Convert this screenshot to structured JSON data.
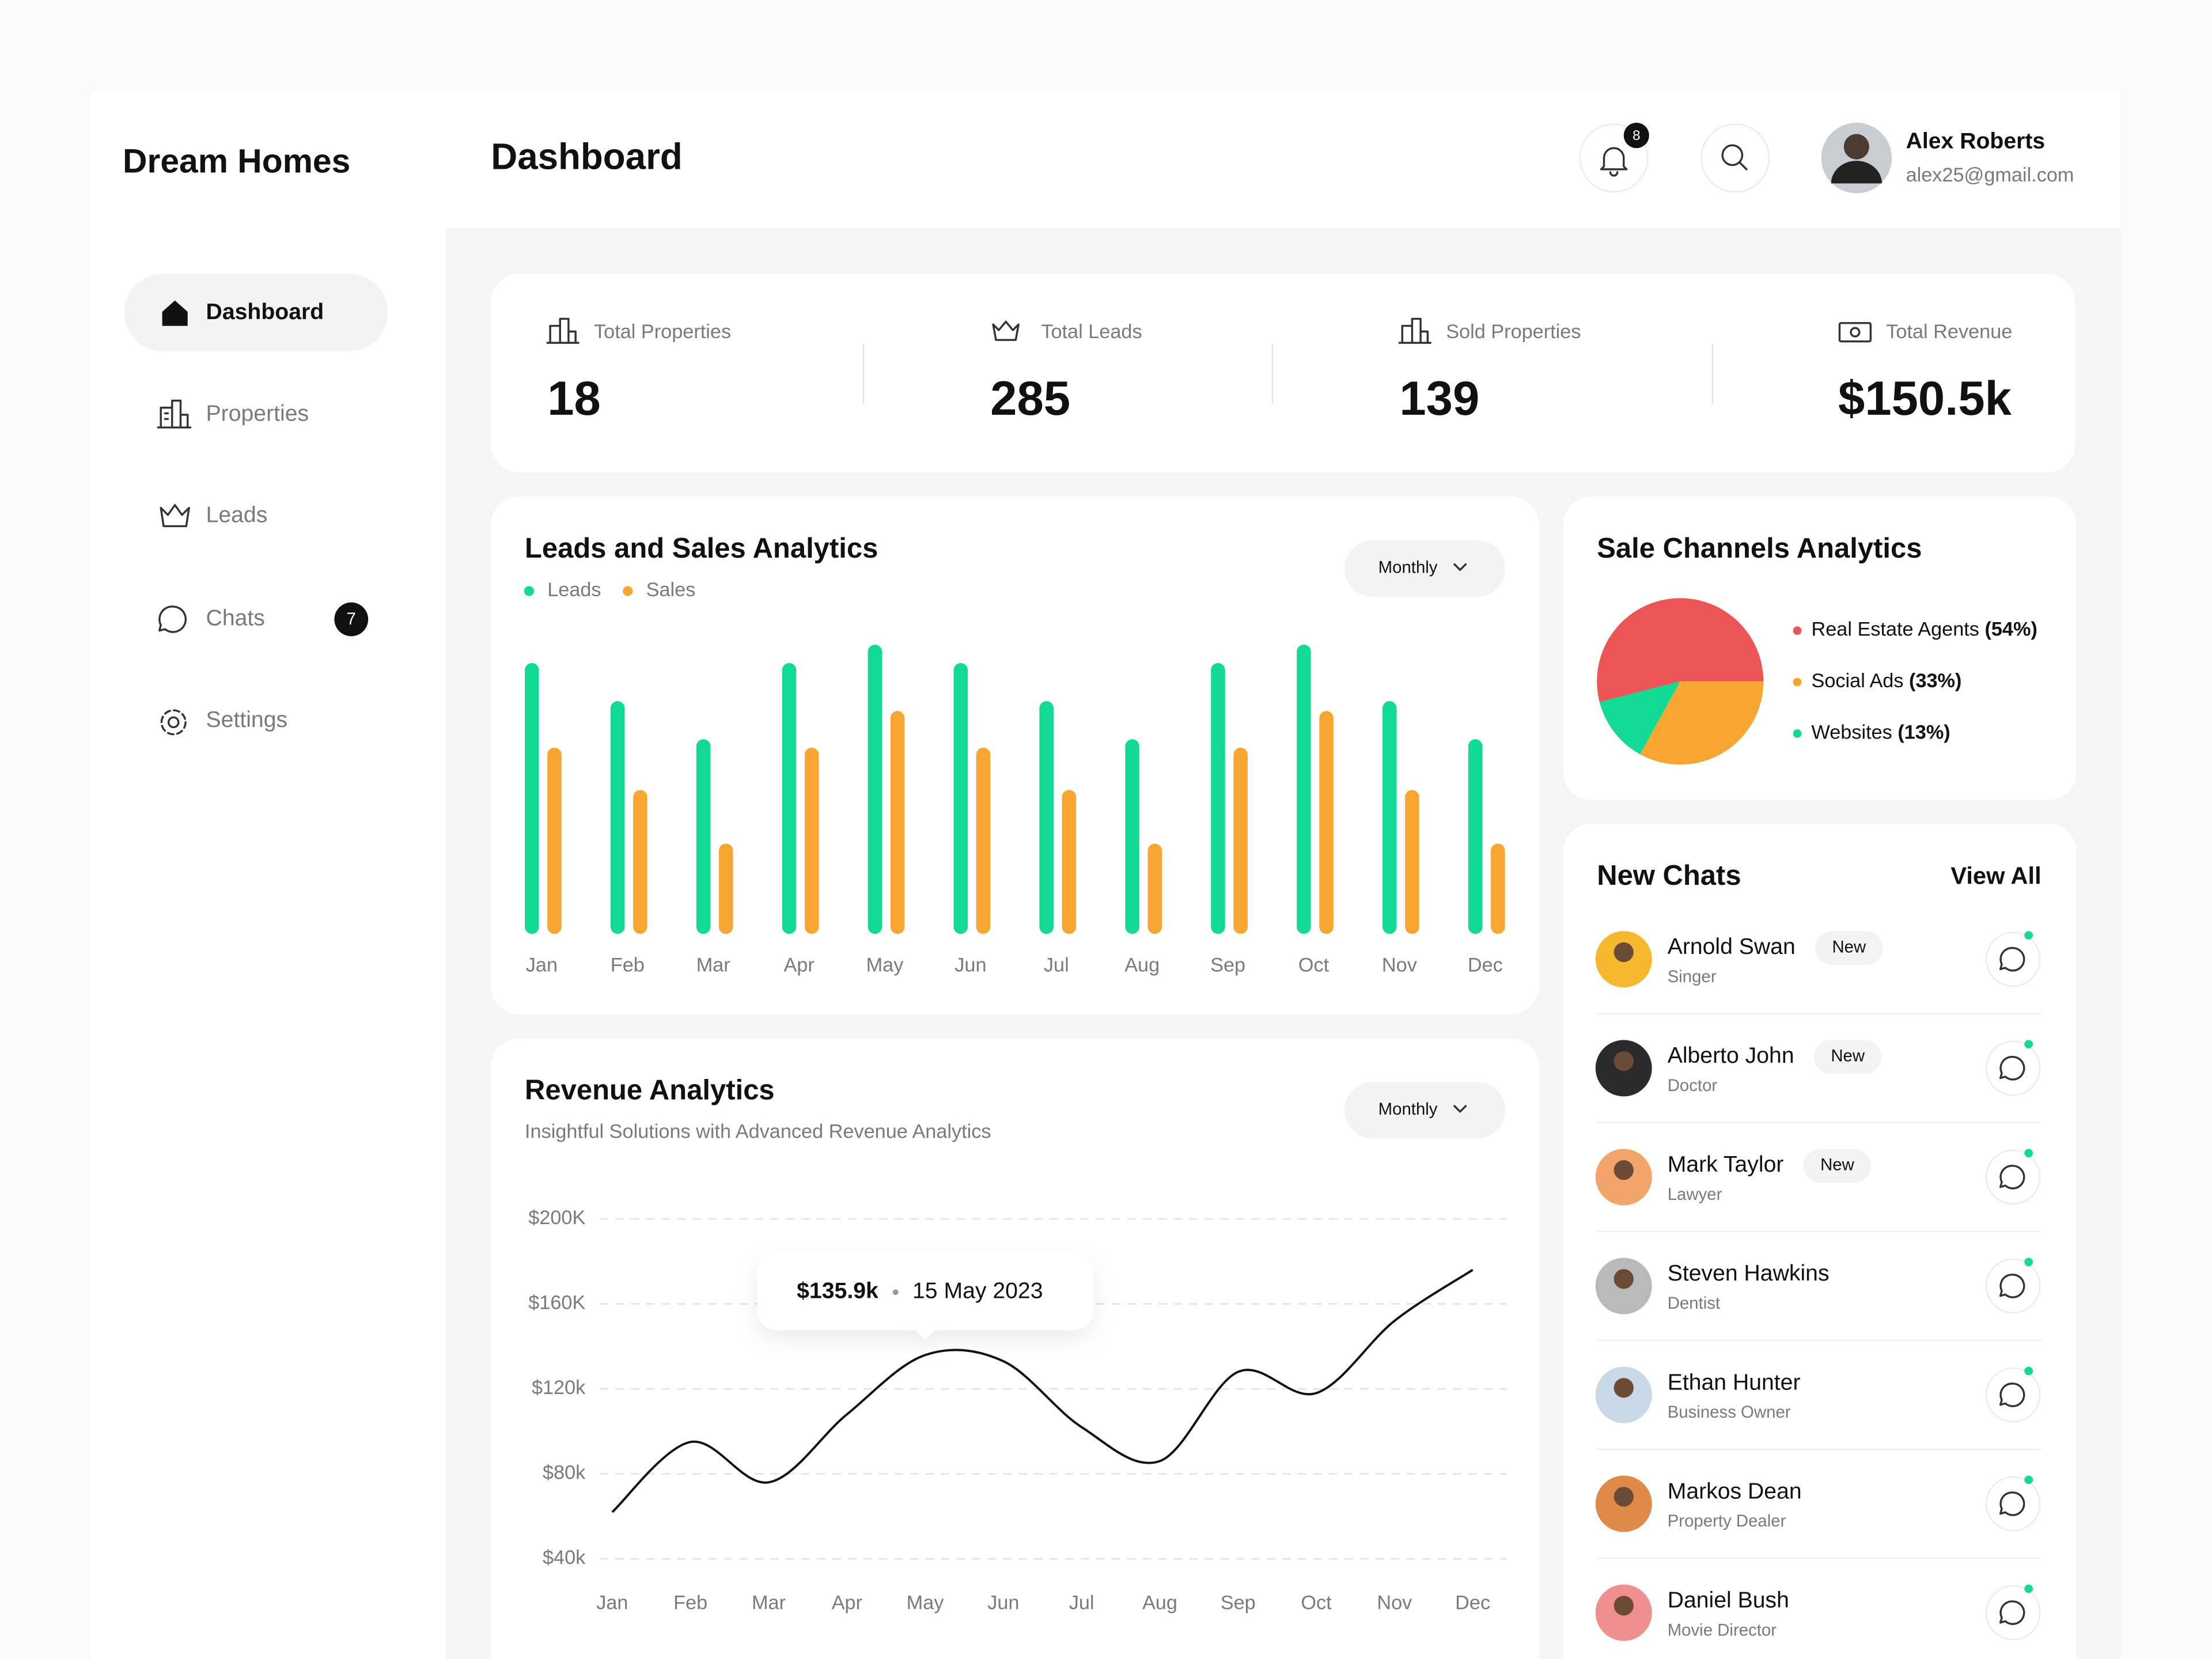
{
  "brand": "Dream Homes",
  "header": {
    "title": "Dashboard",
    "notifications": "8",
    "user": {
      "name": "Alex Roberts",
      "email": "alex25@gmail.com"
    }
  },
  "nav": [
    {
      "label": "Dashboard"
    },
    {
      "label": "Properties"
    },
    {
      "label": "Leads"
    },
    {
      "label": "Chats",
      "badge": "7"
    },
    {
      "label": "Settings"
    }
  ],
  "stats": [
    {
      "label": "Total Properties",
      "value": "18"
    },
    {
      "label": "Total Leads",
      "value": "285"
    },
    {
      "label": "Sold Properties",
      "value": "139"
    },
    {
      "label": "Total Revenue",
      "value": "$150.5k"
    }
  ],
  "leads_chart": {
    "type": "bar",
    "title": "Leads and Sales Analytics",
    "filter": "Monthly",
    "categories": [
      "Jan",
      "Feb",
      "Mar",
      "Apr",
      "May",
      "Jun",
      "Jul",
      "Aug",
      "Sep",
      "Oct",
      "Nov",
      "Dec"
    ],
    "series": [
      {
        "name": "Leads",
        "color": "#12d993",
        "values": [
          192,
          165,
          138,
          192,
          205,
          192,
          165,
          138,
          192,
          205,
          165,
          138
        ]
      },
      {
        "name": "Sales",
        "color": "#f9a532",
        "values": [
          132,
          102,
          64,
          132,
          158,
          132,
          102,
          64,
          132,
          158,
          102,
          64
        ]
      }
    ]
  },
  "channels_chart": {
    "type": "pie",
    "title": "Sale Channels Analytics",
    "categories": [
      "Real Estate Agents",
      "Social Ads",
      "Websites"
    ],
    "values": [
      54,
      33,
      13
    ],
    "value_labels": [
      "(54%)",
      "(33%)",
      "(13%)"
    ],
    "colors": [
      "#ec5555",
      "#f9a532",
      "#12d993"
    ]
  },
  "revenue_chart": {
    "type": "line",
    "title": "Revenue Analytics",
    "subtitle": "Insightful Solutions with Advanced Revenue Analytics",
    "filter": "Monthly",
    "categories": [
      "Jan",
      "Feb",
      "Mar",
      "Apr",
      "May",
      "Jun",
      "Jul",
      "Aug",
      "Sep",
      "Oct",
      "Nov",
      "Dec"
    ],
    "values": [
      62000,
      95000,
      76000,
      108000,
      135900,
      133000,
      102000,
      86000,
      128000,
      118000,
      152000,
      176000
    ],
    "color": "#111111",
    "ylim": [
      40000,
      200000
    ],
    "yticks": [
      {
        "value": 200000,
        "label": "$200K"
      },
      {
        "value": 160000,
        "label": "$160K"
      },
      {
        "value": 120000,
        "label": "$120k"
      },
      {
        "value": 80000,
        "label": "$80k"
      },
      {
        "value": 40000,
        "label": "$40k"
      }
    ],
    "grid": true,
    "annotation": {
      "value": "$135.9k",
      "date": "15 May 2023"
    }
  },
  "chats": {
    "title": "New Chats",
    "action": "View All",
    "items": [
      {
        "name": "Arnold Swan",
        "role": "Singer",
        "badge": "New"
      },
      {
        "name": "Alberto John",
        "role": "Doctor",
        "badge": "New"
      },
      {
        "name": "Mark Taylor",
        "role": "Lawyer",
        "badge": "New"
      },
      {
        "name": "Steven Hawkins",
        "role": "Dentist"
      },
      {
        "name": "Ethan Hunter",
        "role": "Business Owner"
      },
      {
        "name": "Markos Dean",
        "role": "Property Dealer"
      },
      {
        "name": "Daniel Bush",
        "role": "Movie Director"
      }
    ]
  }
}
